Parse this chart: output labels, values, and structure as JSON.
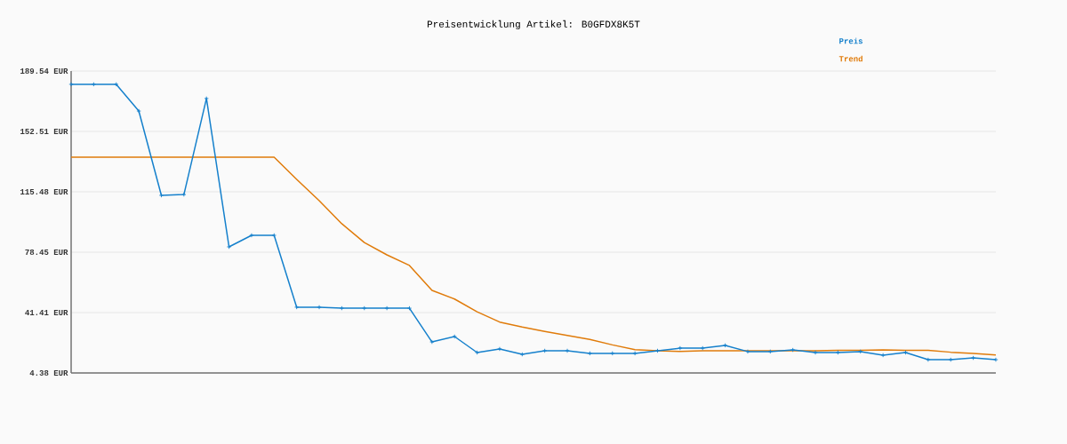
{
  "chart_data": {
    "type": "line",
    "title": "Preisentwicklung Artikel: B0GFDX8K5T",
    "categories": [
      null,
      null,
      null,
      null,
      null,
      null,
      null,
      null,
      null,
      null,
      null,
      null,
      null,
      null,
      null,
      null,
      null,
      null,
      null,
      null,
      null,
      null,
      null,
      null,
      null,
      null,
      null,
      null,
      null,
      null,
      null,
      null,
      null,
      null,
      null,
      null,
      null,
      null,
      null,
      null,
      null,
      null
    ],
    "series": [
      {
        "name": "Preis",
        "color": "#1580cc",
        "marker": "cross",
        "values": [
          181.4,
          181.4,
          181.4,
          165.0,
          113.3,
          113.8,
          172.7,
          81.7,
          88.8,
          88.8,
          44.7,
          44.7,
          44.1,
          44.1,
          44.1,
          44.1,
          23.4,
          26.7,
          16.9,
          19.1,
          15.8,
          18.0,
          18.0,
          16.4,
          16.4,
          16.4,
          18.0,
          19.6,
          19.6,
          21.3,
          17.5,
          17.5,
          18.5,
          16.9,
          16.9,
          17.5,
          15.3,
          16.9,
          12.5,
          12.5,
          13.6,
          12.5
        ]
      },
      {
        "name": "Trend",
        "color": "#e07b0a",
        "marker": "none",
        "values": [
          136.7,
          136.7,
          136.7,
          136.7,
          136.7,
          136.7,
          136.7,
          136.7,
          136.7,
          136.7,
          123.1,
          110.0,
          95.9,
          84.4,
          76.8,
          70.3,
          55.0,
          49.7,
          41.9,
          35.6,
          32.5,
          29.8,
          27.4,
          24.9,
          21.6,
          18.7,
          18.0,
          17.6,
          18.0,
          18.0,
          18.0,
          18.0,
          18.0,
          18.0,
          18.3,
          18.3,
          18.5,
          18.3,
          18.3,
          17.1,
          16.3,
          15.4
        ]
      }
    ],
    "ylim": [
      4.38,
      189.54
    ],
    "yticks": [
      {
        "value": 4.38,
        "label": "4.38 EUR"
      },
      {
        "value": 41.41,
        "label": "41.41 EUR"
      },
      {
        "value": 78.45,
        "label": "78.45 EUR"
      },
      {
        "value": 115.48,
        "label": "115.48 EUR"
      },
      {
        "value": 152.51,
        "label": "152.51 EUR"
      },
      {
        "value": 189.54,
        "label": "189.54 EUR"
      }
    ],
    "grid": "y",
    "legend": "top right",
    "tick_labels": "y"
  }
}
